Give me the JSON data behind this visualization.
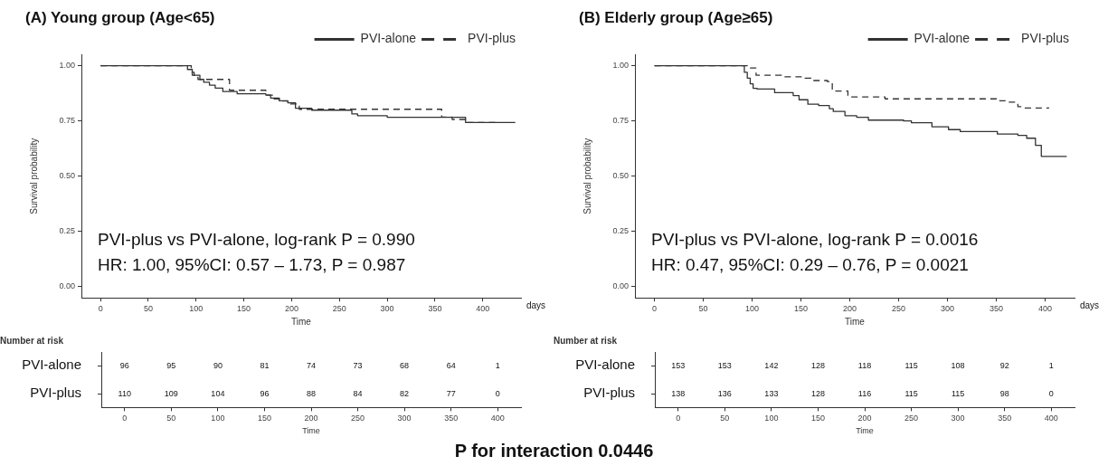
{
  "chart_data": [
    {
      "type": "step",
      "title": "(A) Young group (Age<65)",
      "xlabel": "Time",
      "ylabel": "Survival probability",
      "xlim": [
        -20,
        440
      ],
      "ylim": [
        -0.05,
        1.05
      ],
      "xticks": [
        0,
        50,
        100,
        150,
        200,
        250,
        300,
        350,
        400
      ],
      "yticks": [
        {
          "value": 0,
          "label": "0.00"
        },
        {
          "value": 0.25,
          "label": "0.25"
        },
        {
          "value": 0.5,
          "label": "0.50"
        },
        {
          "value": 0.75,
          "label": "0.75"
        },
        {
          "value": 1,
          "label": "1.00"
        }
      ],
      "legend": "top right",
      "grid": false,
      "annotations": [
        "PVI-plus vs PVI-alone, log-rank P = 0.990",
        "HR: 1.00, 95%CI: 0.57 – 1.73, P = 0.987",
        "days"
      ],
      "series": [
        {
          "name": "PVI-alone",
          "color": "#333333",
          "line_style": "solid",
          "x": [
            0,
            91,
            96,
            104,
            108,
            114,
            120,
            128,
            143,
            173,
            178,
            187,
            196,
            204,
            221,
            263,
            269,
            300,
            382,
            434
          ],
          "values": [
            1,
            0.983,
            0.957,
            0.938,
            0.925,
            0.912,
            0.899,
            0.883,
            0.873,
            0.867,
            0.854,
            0.841,
            0.832,
            0.808,
            0.799,
            0.782,
            0.774,
            0.767,
            0.743,
            0.743
          ]
        },
        {
          "name": "PVI-plus",
          "color": "#333333",
          "line_style": "dashed",
          "x": [
            0,
            95,
            98,
            102,
            135,
            173,
            180,
            190,
            198,
            208,
            357,
            368,
            382,
            413
          ],
          "values": [
            1,
            0.97,
            0.951,
            0.938,
            0.889,
            0.867,
            0.85,
            0.84,
            0.827,
            0.803,
            0.768,
            0.757,
            0.743,
            0.743
          ]
        }
      ]
    },
    {
      "type": "step",
      "title": "(B) Elderly group (Age≥65)",
      "xlabel": "Time",
      "ylabel": "Survival probability",
      "xlim": [
        -20,
        430
      ],
      "ylim": [
        -0.05,
        1.05
      ],
      "xticks": [
        0,
        50,
        100,
        150,
        200,
        250,
        300,
        350,
        400
      ],
      "yticks": [
        {
          "value": 0,
          "label": "0.00"
        },
        {
          "value": 0.25,
          "label": "0.25"
        },
        {
          "value": 0.5,
          "label": "0.50"
        },
        {
          "value": 0.75,
          "label": "0.75"
        },
        {
          "value": 1,
          "label": "1.00"
        }
      ],
      "legend": "top right",
      "grid": false,
      "annotations": [
        "PVI-plus vs PVI-alone, log-rank P = 0.0016",
        "HR: 0.47, 95%CI: 0.29 – 0.76, P = 0.0021",
        "days"
      ],
      "series": [
        {
          "name": "PVI-alone",
          "color": "#333333",
          "line_style": "solid",
          "x": [
            0,
            92,
            95,
            98,
            101,
            105,
            123,
            142,
            148,
            157,
            168,
            179,
            183,
            195,
            207,
            219,
            255,
            263,
            284,
            301,
            313,
            351,
            372,
            381,
            390,
            396,
            422
          ],
          "values": [
            1,
            0.97,
            0.944,
            0.918,
            0.898,
            0.895,
            0.878,
            0.865,
            0.846,
            0.826,
            0.82,
            0.806,
            0.793,
            0.774,
            0.767,
            0.754,
            0.75,
            0.742,
            0.724,
            0.711,
            0.702,
            0.691,
            0.685,
            0.672,
            0.64,
            0.59,
            0.59
          ]
        },
        {
          "name": "PVI-plus",
          "color": "#333333",
          "line_style": "dashed",
          "x": [
            0,
            95,
            104,
            130,
            154,
            162,
            177,
            182,
            198,
            201,
            236,
            352,
            361,
            372,
            375,
            404
          ],
          "values": [
            1,
            0.99,
            0.957,
            0.95,
            0.944,
            0.933,
            0.928,
            0.885,
            0.865,
            0.859,
            0.85,
            0.841,
            0.835,
            0.815,
            0.809,
            0.809
          ]
        }
      ]
    },
    {
      "type": "heatmap",
      "title": "Number at risk",
      "xlabel": "Time",
      "data_labels": true,
      "categories": [
        "0",
        "50",
        "100",
        "150",
        "200",
        "250",
        "300",
        "350",
        "400"
      ],
      "y_categories": [
        "PVI-alone",
        "PVI-plus"
      ],
      "cells": [
        [
          96,
          95,
          90,
          81,
          74,
          73,
          68,
          64,
          1
        ],
        [
          110,
          109,
          104,
          96,
          88,
          84,
          82,
          77,
          0
        ]
      ]
    },
    {
      "type": "heatmap",
      "title": "Number at risk",
      "xlabel": "Time",
      "data_labels": true,
      "categories": [
        "0",
        "50",
        "100",
        "150",
        "200",
        "250",
        "300",
        "350",
        "400"
      ],
      "y_categories": [
        "PVI-alone",
        "PVI-plus"
      ],
      "cells": [
        [
          153,
          153,
          142,
          128,
          118,
          115,
          108,
          92,
          1
        ],
        [
          138,
          136,
          133,
          128,
          116,
          115,
          115,
          98,
          0
        ]
      ]
    },
    {
      "type": "other",
      "title": "P for interaction 0.0446"
    }
  ]
}
